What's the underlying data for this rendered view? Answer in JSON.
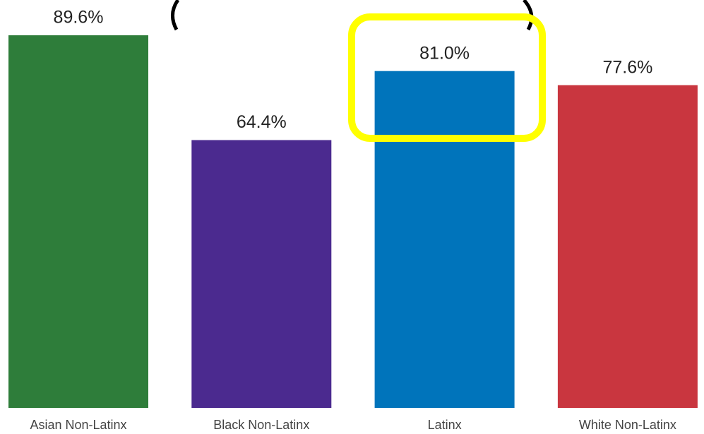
{
  "chart_data": {
    "type": "bar",
    "categories": [
      "Asian Non-Latinx",
      "Black Non-Latinx",
      "Latinx",
      "White Non-Latinx"
    ],
    "values": [
      89.6,
      64.4,
      81.0,
      77.6
    ],
    "value_labels": [
      "89.6%",
      "64.4%",
      "81.0%",
      "77.6%"
    ],
    "colors": [
      "#2e7d3a",
      "#4b2a8f",
      "#0074bb",
      "#c9363f"
    ]
  }
}
